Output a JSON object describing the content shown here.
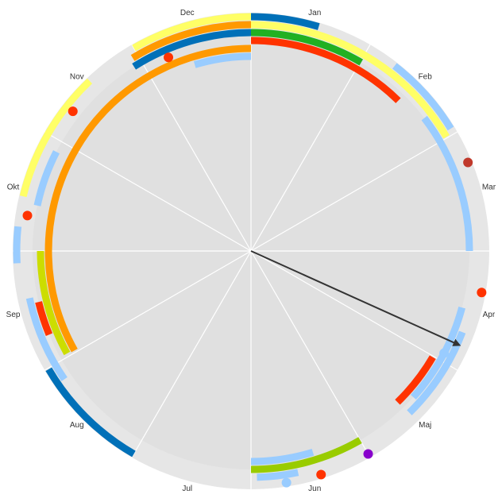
{
  "chart_data": {
    "type": "radial-timeline",
    "categories": [
      "Jan",
      "Feb",
      "Mar",
      "Apr",
      "Maj",
      "Jun",
      "Jul",
      "Aug",
      "Sep",
      "Okt",
      "Nov",
      "Dec"
    ],
    "arcs": [
      {
        "color": "#0070b8",
        "ring": 0,
        "start": 0,
        "end": 0.56
      },
      {
        "color": "#ffff66",
        "ring": 0,
        "start": 11.0,
        "end": 12
      },
      {
        "color": "#ffff66",
        "ring": 1,
        "start": 0,
        "end": 1.99
      },
      {
        "color": "#ff9900",
        "ring": 1,
        "start": 10.95,
        "end": 12
      },
      {
        "color": "#0070b8",
        "ring": 2,
        "start": 10.92,
        "end": 12
      },
      {
        "color": "#22b022",
        "ring": 2,
        "start": 0,
        "end": 1.01
      },
      {
        "color": "#ff3300",
        "ring": 3,
        "start": 0,
        "end": 1.48
      },
      {
        "color": "#ff9900",
        "ring": 4,
        "start": 8.02,
        "end": 12
      },
      {
        "color": "#99ccff",
        "ring": 5,
        "start": 11.44,
        "end": 12
      },
      {
        "color": "#99ccff",
        "ring": 0,
        "start": 1.26,
        "end": 1.95
      },
      {
        "color": "#99ccff",
        "ring": 2,
        "start": 1.75,
        "end": 3.0
      },
      {
        "color": "#99ccff",
        "ring": 2,
        "start": 3.5,
        "end": 4.4
      },
      {
        "color": "#99ccff",
        "ring": 1,
        "start": 3.7,
        "end": 4.52
      },
      {
        "color": "#ff3300",
        "ring": 3,
        "start": 4.01,
        "end": 4.53
      },
      {
        "color": "#99ccff",
        "ring": 1,
        "start": 5.6,
        "end": 5.95
      },
      {
        "color": "#99cc00",
        "ring": 2,
        "start": 5.0,
        "end": 6.0
      },
      {
        "color": "#99ccff",
        "ring": 3,
        "start": 5.43,
        "end": 6.0
      },
      {
        "color": "#0070b8",
        "ring": 0,
        "start": 7.0,
        "end": 7.99
      },
      {
        "color": "#99ccff",
        "ring": 1,
        "start": 7.85,
        "end": 8.6
      },
      {
        "color": "#99ccff",
        "ring": 0,
        "start": 8.9,
        "end": 9.2
      },
      {
        "color": "#ff3300",
        "ring": 2,
        "start": 8.25,
        "end": 8.55
      },
      {
        "color": "#ccdd00",
        "ring": 3,
        "start": 8.03,
        "end": 9.0
      },
      {
        "color": "#99ccff",
        "ring": 2,
        "start": 9.4,
        "end": 9.9
      },
      {
        "color": "#ffff66",
        "ring": 0,
        "start": 9.45,
        "end": 10.55
      }
    ],
    "dots": [
      {
        "color": "#ff3300",
        "ring": 3,
        "at": 11.23
      },
      {
        "color": "#ff3300",
        "ring": 1,
        "at": 10.27
      },
      {
        "color": "#ff3300",
        "ring": 1,
        "at": 9.3
      },
      {
        "color": "#c0392b",
        "ring": 0,
        "at": 2.26
      },
      {
        "color": "#ff3300",
        "ring": 0,
        "at": 3.34
      },
      {
        "color": "#99ccff",
        "ring": 2,
        "at": 3.93
      },
      {
        "color": "#8800cc",
        "ring": 0,
        "at": 5.0
      },
      {
        "color": "#ff3300",
        "ring": 0,
        "at": 5.42
      },
      {
        "color": "#99ccff",
        "ring": 0,
        "at": 5.71
      }
    ],
    "pointer": 3.81
  }
}
